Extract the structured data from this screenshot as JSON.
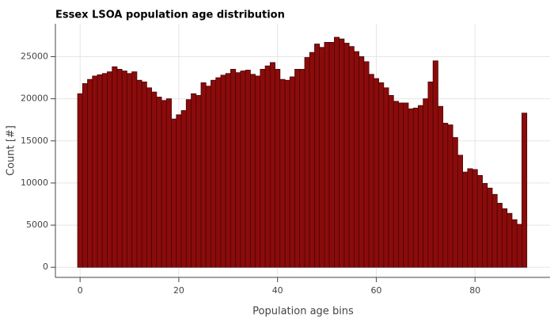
{
  "chart_data": {
    "type": "histogram",
    "title": "Essex LSOA population age distribution",
    "x_label": "Population age bins",
    "y_label": "Count [#]",
    "color": "#8b0b0b",
    "edge_color": "#4a0606",
    "grid": true,
    "bins": [
      -0.5,
      0.5,
      1.5,
      2.5,
      3.5,
      4.5,
      5.5,
      6.5,
      7.5,
      8.5,
      9.5,
      10.5,
      11.5,
      12.5,
      13.5,
      14.5,
      15.5,
      16.5,
      17.5,
      18.5,
      19.5,
      20.5,
      21.5,
      22.5,
      23.5,
      24.5,
      25.5,
      26.5,
      27.5,
      28.5,
      29.5,
      30.5,
      31.5,
      32.5,
      33.5,
      34.5,
      35.5,
      36.5,
      37.5,
      38.5,
      39.5,
      40.5,
      41.5,
      42.5,
      43.5,
      44.5,
      45.5,
      46.5,
      47.5,
      48.5,
      49.5,
      50.5,
      51.5,
      52.5,
      53.5,
      54.5,
      55.5,
      56.5,
      57.5,
      58.5,
      59.5,
      60.5,
      61.5,
      62.5,
      63.5,
      64.5,
      65.5,
      66.5,
      67.5,
      68.5,
      69.5,
      70.5,
      71.5,
      72.5,
      73.5,
      74.5,
      75.5,
      76.5,
      77.5,
      78.5,
      79.5,
      80.5,
      81.5,
      82.5,
      83.5,
      84.5,
      85.5,
      86.5,
      87.5,
      88.5,
      89.5,
      90.5
    ],
    "values": [
      20600,
      21800,
      22300,
      22700,
      22850,
      23000,
      23200,
      23800,
      23500,
      23300,
      23000,
      23200,
      22200,
      22000,
      21300,
      20800,
      20200,
      19800,
      20000,
      17600,
      18100,
      18600,
      19900,
      20600,
      20400,
      21900,
      21500,
      22200,
      22500,
      22800,
      23000,
      23500,
      23100,
      23300,
      23400,
      22900,
      22700,
      23500,
      23900,
      24300,
      23500,
      22300,
      22200,
      22600,
      23500,
      23500,
      24900,
      25500,
      26500,
      26100,
      26700,
      26700,
      27300,
      27100,
      26600,
      26200,
      25600,
      25000,
      24400,
      22900,
      22400,
      21900,
      21300,
      20400,
      19700,
      19500,
      19500,
      18800,
      18900,
      19200,
      20000,
      22000,
      24500,
      19100,
      17100,
      16900,
      15400,
      13300,
      11300,
      11700,
      11600,
      10900,
      9950,
      9400,
      8650,
      7600,
      6950,
      6400,
      5650,
      5100,
      18300
    ],
    "xlim": [
      -5,
      95.2
    ],
    "ylim": [
      -1200,
      28900
    ],
    "xticks": [
      0,
      20,
      40,
      60,
      80
    ],
    "yticks": [
      0,
      5000,
      10000,
      15000,
      20000,
      25000
    ]
  }
}
